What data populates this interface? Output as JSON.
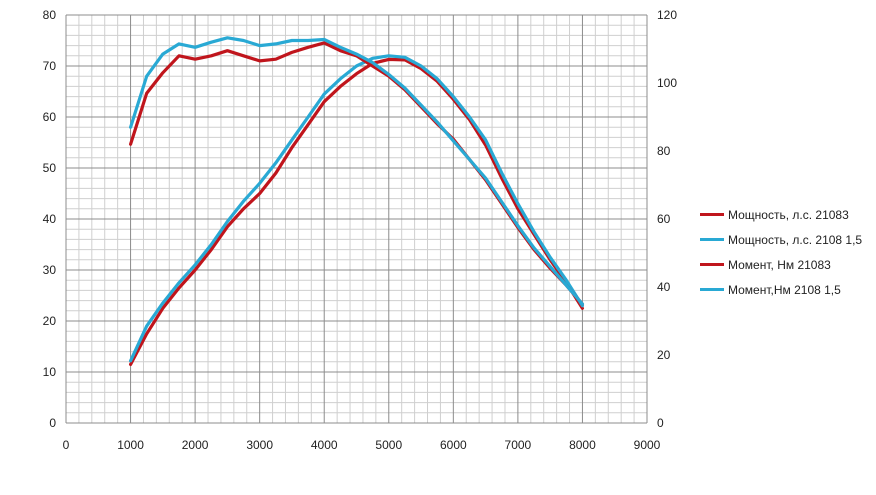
{
  "chart_data": {
    "type": "line",
    "title": "",
    "xlabel": "",
    "ylabel": "",
    "xlim": [
      0,
      9000
    ],
    "xticks": [
      0,
      1000,
      2000,
      3000,
      4000,
      5000,
      6000,
      7000,
      8000,
      9000
    ],
    "ylim_left": [
      0,
      80
    ],
    "yticks_left": [
      0,
      10,
      20,
      30,
      40,
      50,
      60,
      70,
      80
    ],
    "ylim_right": [
      0,
      120
    ],
    "yticks_right": [
      0,
      20,
      40,
      60,
      80,
      100,
      120
    ],
    "grid": true,
    "legend_position": "right",
    "series": [
      {
        "name": "Мощность, л.с. 21083",
        "color": "#c0151c",
        "axis": "left",
        "x": [
          1000,
          1250,
          1500,
          1750,
          2000,
          2250,
          2500,
          2750,
          3000,
          3250,
          3500,
          3750,
          4000,
          4250,
          4500,
          4750,
          5000,
          5250,
          5500,
          5750,
          6000,
          6250,
          6500,
          6750,
          7000,
          7250,
          7500,
          7750,
          8000
        ],
        "values": [
          11.5,
          17.5,
          22.5,
          26.5,
          30,
          34,
          38.5,
          42,
          45,
          49,
          54,
          58.5,
          63,
          66,
          68.5,
          70.5,
          71.3,
          71.2,
          69.5,
          67,
          63.5,
          59.5,
          54.5,
          48,
          42,
          37,
          32,
          27.5,
          22.5
        ]
      },
      {
        "name": "Мощность, л.с. 2108 1,5",
        "color": "#29a9d4",
        "axis": "left",
        "x": [
          1000,
          1250,
          1500,
          1750,
          2000,
          2250,
          2500,
          2750,
          3000,
          3250,
          3500,
          3750,
          4000,
          4250,
          4500,
          4750,
          5000,
          5250,
          5500,
          5750,
          6000,
          6250,
          6500,
          6750,
          7000,
          7250,
          7500,
          7750,
          8000
        ],
        "values": [
          12.2,
          19,
          23.5,
          27.5,
          31,
          35,
          39.5,
          43.5,
          47,
          51,
          55.5,
          60,
          64.5,
          67.5,
          70,
          71.5,
          72,
          71.7,
          70,
          67.5,
          64,
          60,
          55.5,
          49,
          43,
          37.5,
          32.5,
          28,
          23
        ]
      },
      {
        "name": "Момент, Нм 21083",
        "color": "#c0151c",
        "axis": "right",
        "x": [
          1000,
          1250,
          1500,
          1750,
          2000,
          2250,
          2500,
          2750,
          3000,
          3250,
          3500,
          3750,
          4000,
          4250,
          4500,
          4750,
          5000,
          5250,
          5500,
          5750,
          6000,
          6250,
          6500,
          6750,
          7000,
          7250,
          7500,
          7750,
          8000
        ],
        "values": [
          82,
          97,
          103,
          108,
          107,
          108,
          109.5,
          108,
          106.5,
          107,
          109,
          110.5,
          111.8,
          109.5,
          108,
          105,
          102,
          98,
          93,
          88,
          83.5,
          77.5,
          71.5,
          64.5,
          57.5,
          51,
          45.5,
          40.5,
          35
        ]
      },
      {
        "name": "Момент,Нм 2108 1,5",
        "color": "#29a9d4",
        "axis": "right",
        "x": [
          1000,
          1250,
          1500,
          1750,
          2000,
          2250,
          2500,
          2750,
          3000,
          3250,
          3500,
          3750,
          4000,
          4250,
          4500,
          4750,
          5000,
          5250,
          5500,
          5750,
          6000,
          6250,
          6500,
          6750,
          7000,
          7250,
          7500,
          7750,
          8000
        ],
        "values": [
          87,
          102,
          108.5,
          111.5,
          110.5,
          112,
          113.3,
          112.5,
          111,
          111.5,
          112.5,
          112.5,
          112.8,
          110.5,
          108.5,
          106,
          102.5,
          98.5,
          93.5,
          88.5,
          83,
          77.5,
          72,
          65,
          58,
          51.5,
          46,
          40.5,
          35
        ]
      }
    ]
  }
}
